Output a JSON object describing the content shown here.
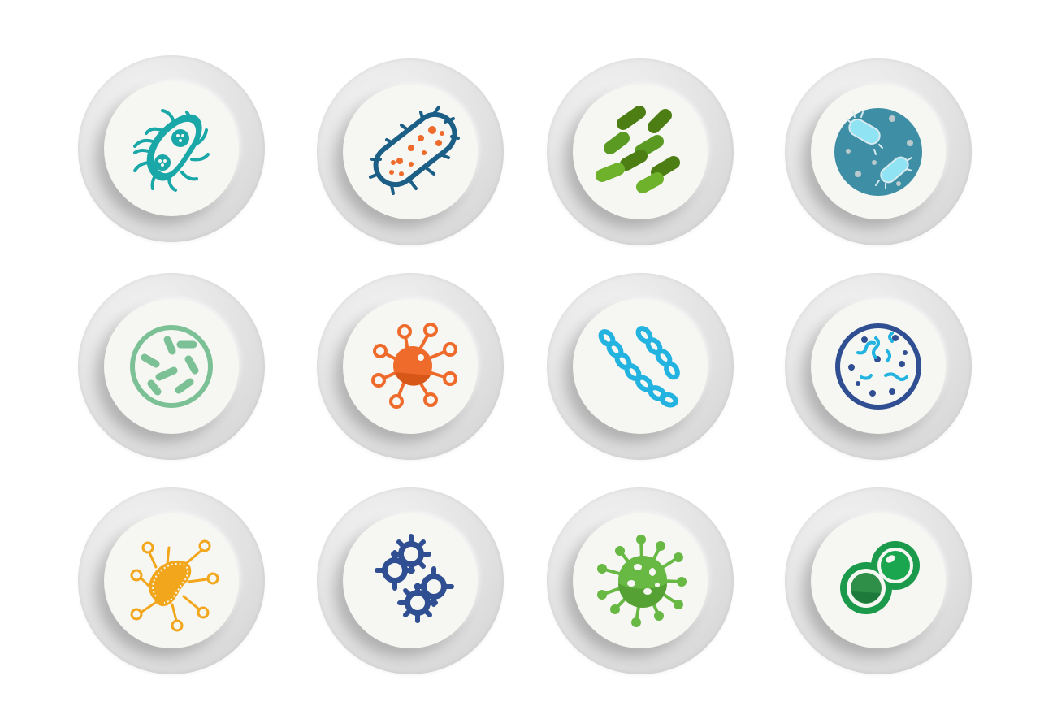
{
  "icons": [
    {
      "name": "flagellated-bacterium-icon",
      "color": "#1aa7a8"
    },
    {
      "name": "rod-bacterium-with-spots-icon",
      "color": "#1c5f86"
    },
    {
      "name": "rod-bacteria-cluster-icon",
      "color": "#5a9a22"
    },
    {
      "name": "bacteria-in-petri-dish-icon",
      "color": "#3e8fa6"
    },
    {
      "name": "rod-bacteria-circle-icon",
      "color": "#7cc196"
    },
    {
      "name": "orange-virus-icon",
      "color": "#ef6b2b"
    },
    {
      "name": "chain-bacteria-icon",
      "color": "#23b3e0"
    },
    {
      "name": "spirilla-circle-icon",
      "color": "#2f4f92"
    },
    {
      "name": "yellow-bacterium-with-spores-icon",
      "color": "#f2a61c"
    },
    {
      "name": "gear-cells-icon",
      "color": "#2f4f92"
    },
    {
      "name": "green-virus-icon",
      "color": "#68b844"
    },
    {
      "name": "diplococcus-icon",
      "color": "#1a9a4a"
    }
  ]
}
